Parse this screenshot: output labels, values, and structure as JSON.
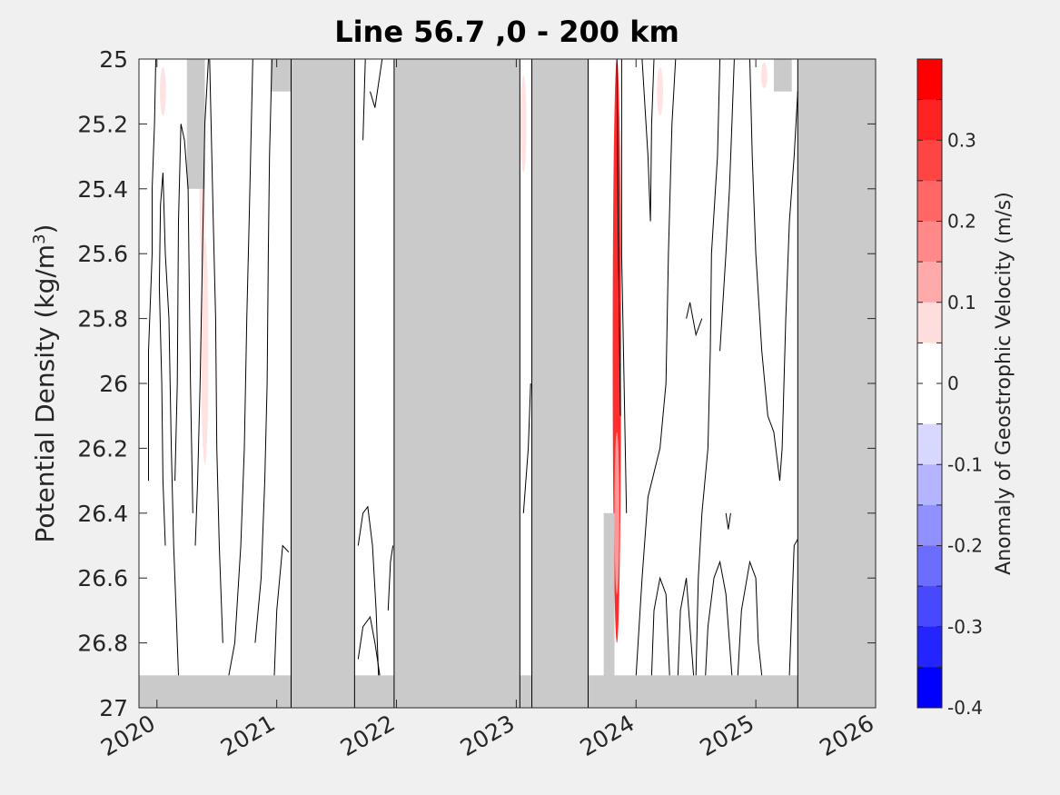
{
  "chart_data": {
    "type": "heatmap",
    "title": "Line 56.7 ,0 - 200 km",
    "ylabel": "Potential Density (kg/m",
    "ylabel_sup": "3",
    "ylabel_close": ")",
    "x_ticks": [
      "2020",
      "2021",
      "2022",
      "2023",
      "2024",
      "2025",
      "2026"
    ],
    "x_tick_values": [
      2020,
      2021,
      2022,
      2023,
      2024,
      2025,
      2026
    ],
    "xlim": [
      2019.85,
      2026.0
    ],
    "y_ticks": [
      "25",
      "25.2",
      "25.4",
      "25.6",
      "25.8",
      "26",
      "26.2",
      "26.4",
      "26.6",
      "26.8",
      "27"
    ],
    "y_tick_values": [
      25,
      25.2,
      25.4,
      25.6,
      25.8,
      26.0,
      26.2,
      26.4,
      26.6,
      26.8,
      27.0
    ],
    "ylim": [
      25,
      27
    ],
    "y_reversed": true,
    "colorbar": {
      "label": "Anomaly of Geostrophic Velocity (m/s)",
      "ticks": [
        "0.3",
        "0.2",
        "0.1",
        "0",
        "-0.1",
        "-0.2",
        "-0.3",
        "-0.4"
      ],
      "tick_values": [
        0.3,
        0.2,
        0.1,
        0.0,
        -0.1,
        -0.2,
        -0.3,
        -0.4
      ],
      "range": [
        -0.4,
        0.4
      ],
      "levels": [
        0.35,
        0.3,
        0.25,
        0.2,
        0.15,
        0.1,
        0.05,
        0.0,
        -0.05,
        -0.1,
        -0.15,
        -0.2,
        -0.25,
        -0.3,
        -0.35,
        -0.4
      ],
      "colors": [
        "#ff0000",
        "#ff2222",
        "#ff4444",
        "#ff6666",
        "#ff8888",
        "#ffaaaa",
        "#ffdddd",
        "#ffffff",
        "#ffffff",
        "#d8d8ff",
        "#b4b4ff",
        "#9090ff",
        "#6c6cff",
        "#4848ff",
        "#2424ff",
        "#0000ff"
      ]
    },
    "no_data_color": "#cacaca",
    "missing_periods": [
      {
        "start": 2020.95,
        "end": 2021.12,
        "ymin": 25.0,
        "ymax": 25.1
      },
      {
        "start": 2021.12,
        "end": 2021.65,
        "ymin": 25.0,
        "ymax": 27.0
      },
      {
        "start": 2021.98,
        "end": 2023.03,
        "ymin": 25.0,
        "ymax": 27.0
      },
      {
        "start": 2023.13,
        "end": 2023.6,
        "ymin": 25.0,
        "ymax": 27.0
      },
      {
        "start": 2023.73,
        "end": 2023.82,
        "ymin": 26.4,
        "ymax": 27.0
      },
      {
        "start": 2025.35,
        "end": 2026.0,
        "ymin": 25.0,
        "ymax": 27.0
      },
      {
        "start": 2020.25,
        "end": 2020.4,
        "ymin": 25.0,
        "ymax": 25.4
      },
      {
        "start": 2025.15,
        "end": 2025.3,
        "ymin": 25.0,
        "ymax": 25.1
      }
    ],
    "bottom_missing_from": 26.9,
    "anomaly_patches": [
      {
        "x": 2020.4,
        "y": 25.9,
        "w": 0.06,
        "h": 0.7,
        "value": 0.05
      },
      {
        "x": 2020.38,
        "y": 25.4,
        "w": 0.05,
        "h": 0.5,
        "value": 0.05
      },
      {
        "x": 2020.3,
        "y": 25.45,
        "w": 0.06,
        "h": 0.2,
        "value": -0.05
      },
      {
        "x": 2020.05,
        "y": 25.1,
        "w": 0.05,
        "h": 0.15,
        "value": 0.05
      },
      {
        "x": 2023.06,
        "y": 25.2,
        "w": 0.05,
        "h": 0.3,
        "value": 0.05
      },
      {
        "x": 2023.84,
        "y": 25.9,
        "w": 0.07,
        "h": 1.8,
        "value": 0.3
      },
      {
        "x": 2023.84,
        "y": 26.4,
        "w": 0.04,
        "h": 0.5,
        "value": 0.1
      },
      {
        "x": 2024.2,
        "y": 25.1,
        "w": 0.05,
        "h": 0.15,
        "value": 0.05
      },
      {
        "x": 2024.42,
        "y": 25.25,
        "w": 0.05,
        "h": 0.3,
        "value": -0.05
      },
      {
        "x": 2025.07,
        "y": 25.05,
        "w": 0.05,
        "h": 0.08,
        "value": 0.05
      }
    ],
    "contour_lines": [
      [
        [
          2019.93,
          26.3
        ],
        [
          2019.93,
          25.9
        ],
        [
          2019.96,
          25.6
        ],
        [
          2019.96,
          25.4
        ],
        [
          2019.98,
          25.2
        ],
        [
          2019.99,
          25.0
        ]
      ],
      [
        [
          2020.07,
          26.5
        ],
        [
          2020.05,
          26.3
        ],
        [
          2020.04,
          26.0
        ],
        [
          2020.02,
          25.7
        ],
        [
          2020.03,
          25.45
        ],
        [
          2020.05,
          25.35
        ],
        [
          2020.07,
          25.6
        ],
        [
          2020.1,
          25.8
        ],
        [
          2020.12,
          26.2
        ],
        [
          2020.14,
          26.5
        ],
        [
          2020.16,
          26.7
        ],
        [
          2020.18,
          26.9
        ]
      ],
      [
        [
          2020.15,
          26.3
        ],
        [
          2020.17,
          26.0
        ],
        [
          2020.18,
          25.5
        ],
        [
          2020.2,
          25.2
        ],
        [
          2020.23,
          25.25
        ],
        [
          2020.26,
          25.4
        ],
        [
          2020.28,
          26.0
        ],
        [
          2020.3,
          26.4
        ]
      ],
      [
        [
          2020.32,
          26.5
        ],
        [
          2020.34,
          26.3
        ],
        [
          2020.36,
          26.0
        ],
        [
          2020.38,
          25.6
        ],
        [
          2020.4,
          25.2
        ],
        [
          2020.43,
          25.0
        ]
      ],
      [
        [
          2020.55,
          26.8
        ],
        [
          2020.52,
          26.5
        ],
        [
          2020.5,
          26.2
        ],
        [
          2020.49,
          25.8
        ],
        [
          2020.47,
          25.5
        ],
        [
          2020.44,
          25.0
        ]
      ],
      [
        [
          2020.6,
          26.9
        ],
        [
          2020.65,
          26.8
        ],
        [
          2020.7,
          26.5
        ],
        [
          2020.73,
          26.2
        ],
        [
          2020.75,
          25.8
        ],
        [
          2020.77,
          25.5
        ],
        [
          2020.8,
          25.0
        ]
      ],
      [
        [
          2020.82,
          26.8
        ],
        [
          2020.87,
          26.6
        ],
        [
          2020.9,
          26.3
        ],
        [
          2020.92,
          26.0
        ],
        [
          2020.93,
          25.6
        ],
        [
          2020.94,
          25.3
        ],
        [
          2020.96,
          25.0
        ]
      ],
      [
        [
          2020.98,
          26.9
        ],
        [
          2021.0,
          26.7
        ],
        [
          2021.05,
          26.5
        ],
        [
          2021.1,
          26.52
        ]
      ],
      [
        [
          2021.68,
          26.5
        ],
        [
          2021.72,
          26.4
        ],
        [
          2021.76,
          26.38
        ],
        [
          2021.8,
          26.5
        ],
        [
          2021.83,
          26.7
        ],
        [
          2021.85,
          26.9
        ]
      ],
      [
        [
          2021.68,
          26.85
        ],
        [
          2021.72,
          26.75
        ],
        [
          2021.78,
          26.72
        ],
        [
          2021.82,
          26.8
        ],
        [
          2021.86,
          26.9
        ]
      ],
      [
        [
          2021.72,
          25.25
        ],
        [
          2021.74,
          25.0
        ]
      ],
      [
        [
          2021.78,
          25.1
        ],
        [
          2021.82,
          25.15
        ],
        [
          2021.86,
          25.05
        ],
        [
          2021.88,
          25.0
        ]
      ],
      [
        [
          2021.93,
          26.7
        ],
        [
          2021.95,
          26.55
        ],
        [
          2021.97,
          26.5
        ]
      ],
      [
        [
          2023.06,
          26.4
        ],
        [
          2023.1,
          26.2
        ],
        [
          2023.12,
          26.0
        ]
      ],
      [
        [
          2023.87,
          26.1
        ],
        [
          2023.85,
          25.5
        ],
        [
          2023.84,
          25.0
        ]
      ],
      [
        [
          2023.92,
          26.4
        ],
        [
          2023.9,
          26.0
        ],
        [
          2023.88,
          25.6
        ],
        [
          2023.88,
          25.0
        ]
      ],
      [
        [
          2024.0,
          26.9
        ],
        [
          2024.05,
          26.6
        ],
        [
          2024.1,
          26.35
        ],
        [
          2024.2,
          26.2
        ],
        [
          2024.25,
          26.0
        ],
        [
          2024.27,
          25.6
        ],
        [
          2024.3,
          25.2
        ],
        [
          2024.33,
          25.0
        ]
      ],
      [
        [
          2024.05,
          25.0
        ],
        [
          2024.1,
          25.3
        ],
        [
          2024.12,
          25.5
        ],
        [
          2024.13,
          25.2
        ],
        [
          2024.15,
          25.0
        ]
      ],
      [
        [
          2024.13,
          26.9
        ],
        [
          2024.15,
          26.7
        ],
        [
          2024.2,
          26.6
        ],
        [
          2024.25,
          26.65
        ],
        [
          2024.28,
          26.9
        ]
      ],
      [
        [
          2024.35,
          26.9
        ],
        [
          2024.37,
          26.7
        ],
        [
          2024.42,
          26.6
        ],
        [
          2024.46,
          26.8
        ],
        [
          2024.48,
          26.9
        ]
      ],
      [
        [
          2024.5,
          26.9
        ],
        [
          2024.52,
          26.6
        ],
        [
          2024.55,
          26.4
        ],
        [
          2024.6,
          26.2
        ],
        [
          2024.62,
          25.9
        ],
        [
          2024.63,
          25.6
        ],
        [
          2024.68,
          25.3
        ],
        [
          2024.7,
          25.0
        ]
      ],
      [
        [
          2024.42,
          25.8
        ],
        [
          2024.45,
          25.75
        ],
        [
          2024.5,
          25.85
        ],
        [
          2024.55,
          25.8
        ]
      ],
      [
        [
          2024.58,
          26.9
        ],
        [
          2024.6,
          26.75
        ],
        [
          2024.65,
          26.6
        ],
        [
          2024.7,
          26.55
        ],
        [
          2024.75,
          26.65
        ],
        [
          2024.8,
          26.9
        ]
      ],
      [
        [
          2024.75,
          26.4
        ],
        [
          2024.77,
          26.45
        ],
        [
          2024.79,
          26.4
        ]
      ],
      [
        [
          2024.7,
          25.9
        ],
        [
          2024.75,
          25.6
        ],
        [
          2024.78,
          25.4
        ],
        [
          2024.8,
          25.2
        ],
        [
          2024.82,
          25.0
        ]
      ],
      [
        [
          2024.85,
          26.9
        ],
        [
          2024.88,
          26.7
        ],
        [
          2024.95,
          26.55
        ],
        [
          2025.0,
          26.6
        ],
        [
          2025.02,
          26.8
        ],
        [
          2025.05,
          26.9
        ]
      ],
      [
        [
          2024.95,
          25.0
        ],
        [
          2024.97,
          25.3
        ],
        [
          2025.0,
          25.6
        ],
        [
          2025.05,
          25.9
        ],
        [
          2025.1,
          26.1
        ],
        [
          2025.15,
          26.15
        ],
        [
          2025.2,
          26.3
        ],
        [
          2025.22,
          26.2
        ],
        [
          2025.25,
          25.8
        ],
        [
          2025.28,
          25.5
        ],
        [
          2025.32,
          25.3
        ],
        [
          2025.35,
          25.1
        ]
      ],
      [
        [
          2025.28,
          26.9
        ],
        [
          2025.3,
          26.7
        ],
        [
          2025.32,
          26.5
        ],
        [
          2025.35,
          26.48
        ]
      ]
    ]
  }
}
